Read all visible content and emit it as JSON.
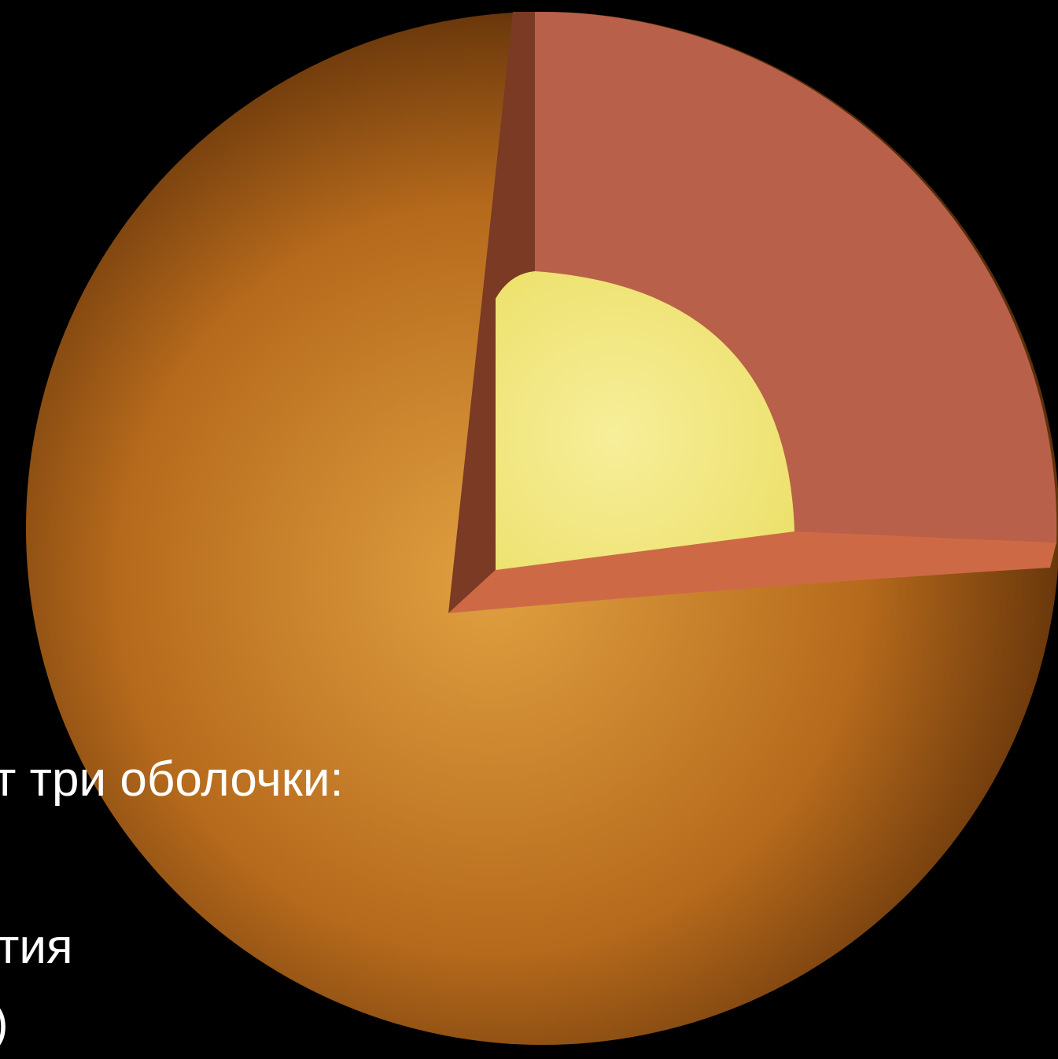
{
  "slide": {
    "lines": [
      "т три оболочки:",
      "тия",
      ")"
    ]
  }
}
